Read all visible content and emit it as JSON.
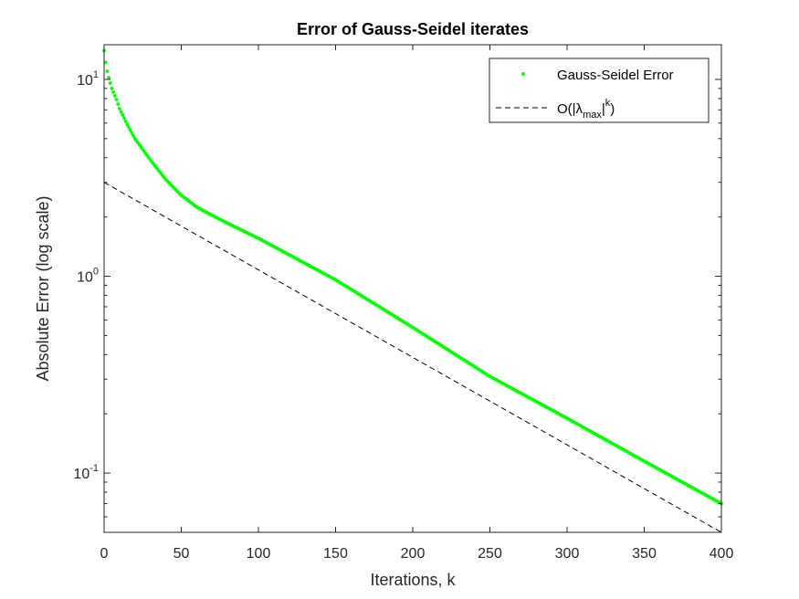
{
  "chart_data": {
    "type": "scatter",
    "title": "Error of Gauss-Seidel iterates",
    "xlabel": "Iterations, k",
    "ylabel": "Absolute Error (log scale)",
    "xlim": [
      0,
      400
    ],
    "ylim": [
      0.05,
      15
    ],
    "yscale": "log",
    "grid": false,
    "legend_position": "top-right",
    "x_ticks": [
      "0",
      "50",
      "100",
      "150",
      "200",
      "250",
      "300",
      "350",
      "400"
    ],
    "y_ticks": [
      {
        "base": "10",
        "exp": "-1"
      },
      {
        "base": "10",
        "exp": "0"
      },
      {
        "base": "10",
        "exp": "1"
      }
    ],
    "series": [
      {
        "name": "Gauss-Seidel Error",
        "style": "markers",
        "color": "#00ff00",
        "x": [
          0,
          1,
          2,
          3,
          5,
          8,
          10,
          15,
          20,
          30,
          40,
          50,
          60,
          70,
          80,
          100,
          150,
          200,
          250,
          300,
          350,
          400
        ],
        "y": [
          14.0,
          12.2,
          11.0,
          10.2,
          9.0,
          7.9,
          7.1,
          5.9,
          5.0,
          3.9,
          3.1,
          2.58,
          2.25,
          2.04,
          1.86,
          1.56,
          0.96,
          0.55,
          0.31,
          0.19,
          0.115,
          0.07
        ]
      },
      {
        "name": "O(|λmax|k)",
        "legend": {
          "prefix": "O(|λ",
          "sub": "max",
          "mid": "|",
          "sup": "k",
          "suffix": ")"
        },
        "style": "dashed",
        "color": "#000000",
        "x": [
          0,
          400
        ],
        "y": [
          3.0,
          0.05
        ]
      }
    ]
  }
}
